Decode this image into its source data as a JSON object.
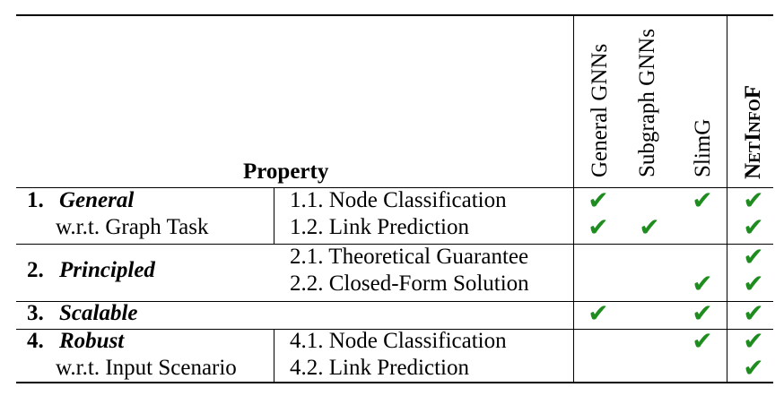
{
  "header": {
    "property": "Property",
    "columns": [
      "General GNNs",
      "Subgraph GNNs",
      "SlimG",
      "NetInfoF"
    ]
  },
  "rows": [
    {
      "num": "1.",
      "name": "General",
      "sub": "w.r.t. Graph Task",
      "items": [
        "1.1. Node Classification",
        "1.2. Link Prediction"
      ]
    },
    {
      "num": "2.",
      "name": "Principled",
      "items": [
        "2.1. Theoretical Guarantee",
        "2.2. Closed-Form Solution"
      ]
    },
    {
      "num": "3.",
      "name": "Scalable"
    },
    {
      "num": "4.",
      "name": "Robust",
      "sub": "w.r.t. Input Scenario",
      "items": [
        "4.1. Node Classification",
        "4.2. Link Prediction"
      ]
    }
  ],
  "check_glyph": "✔",
  "check_color": "#1e8c1e",
  "checks": {
    "1.1": [
      true,
      false,
      true,
      true
    ],
    "1.2": [
      true,
      true,
      false,
      true
    ],
    "2.1": [
      false,
      false,
      false,
      true
    ],
    "2.2": [
      false,
      false,
      true,
      true
    ],
    "3": [
      true,
      false,
      true,
      true
    ],
    "4.1": [
      false,
      false,
      true,
      true
    ],
    "4.2": [
      false,
      false,
      false,
      true
    ]
  }
}
